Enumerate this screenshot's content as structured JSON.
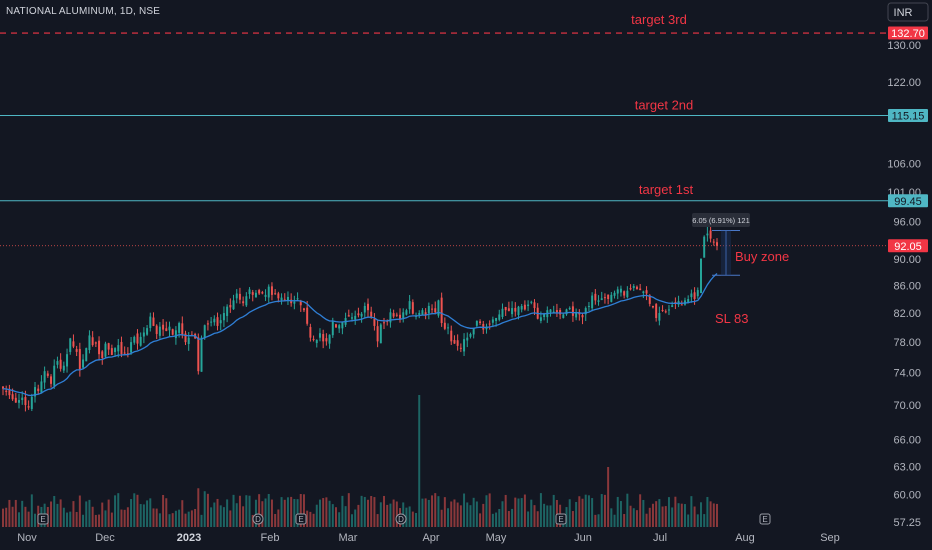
{
  "header": {
    "symbol_title": "NATIONAL ALUMINUM, 1D, NSE",
    "currency": "INR"
  },
  "colors": {
    "background": "#131722",
    "up": "#26a69a",
    "down": "#ef5350",
    "moving_average": "#2f7fd6",
    "target_line": "#4fb7c4",
    "target_3rd_line": "#f23645",
    "annotation_text": "#f23645"
  },
  "annotations": {
    "target_3rd": {
      "label": "target 3rd",
      "price": 132.7,
      "tag": "132.70"
    },
    "target_2nd": {
      "label": "target 2nd",
      "price": 115.15,
      "tag": "115.15"
    },
    "target_1st": {
      "label": "target 1st",
      "price": 99.45,
      "tag": "99.45"
    },
    "last_price": {
      "price": 92.05,
      "tag": "92.05"
    },
    "buy_zone": {
      "label": "Buy zone",
      "top": 94.5,
      "bottom": 87.5
    },
    "stop_loss": {
      "label": "SL 83"
    },
    "measure": {
      "label": "6.05 (6.91%) 121"
    }
  },
  "event_markers": [
    "E",
    "D",
    "E",
    "D",
    "E",
    "E"
  ],
  "chart_data": {
    "type": "candlestick",
    "title": "NATIONAL ALUMINUM, 1D, NSE",
    "price_axis": {
      "scale": "log",
      "range": [
        57.25,
        139
      ],
      "ticks": [
        57.25,
        60.0,
        63.0,
        66.0,
        70.0,
        74.0,
        78.0,
        82.0,
        86.0,
        90.0,
        96.0,
        101.0,
        106.0,
        122.0,
        130.0
      ]
    },
    "time_axis": {
      "ticks": [
        {
          "label": "Nov",
          "bold": false
        },
        {
          "label": "Dec",
          "bold": false
        },
        {
          "label": "2023",
          "bold": true
        },
        {
          "label": "Feb",
          "bold": false
        },
        {
          "label": "Mar",
          "bold": false
        },
        {
          "label": "Apr",
          "bold": false
        },
        {
          "label": "May",
          "bold": false
        },
        {
          "label": "Jun",
          "bold": false
        },
        {
          "label": "Jul",
          "bold": false
        },
        {
          "label": "Aug",
          "bold": false
        },
        {
          "label": "Sep",
          "bold": false
        }
      ]
    },
    "grid": false,
    "closes": [
      72.0,
      71.6,
      71.2,
      70.7,
      70.3,
      70.6,
      70.9,
      70.0,
      69.7,
      71.0,
      72.2,
      71.7,
      72.9,
      74.2,
      73.6,
      72.6,
      74.9,
      75.5,
      74.5,
      74.9,
      76.4,
      78.5,
      77.4,
      76.7,
      74.3,
      75.7,
      77.2,
      78.9,
      77.6,
      77.8,
      76.4,
      75.9,
      77.8,
      77.0,
      76.3,
      77.2,
      77.6,
      76.4,
      76.6,
      76.5,
      78.0,
      78.7,
      77.8,
      78.7,
      79.3,
      79.9,
      81.5,
      80.2,
      79.1,
      80.1,
      79.7,
      79.5,
      80.1,
      79.0,
      79.6,
      80.6,
      78.9,
      78.0,
      78.6,
      79.0,
      78.5,
      74.2,
      78.6,
      80.3,
      80.4,
      80.8,
      81.2,
      80.2,
      81.0,
      82.0,
      82.9,
      82.8,
      83.8,
      84.8,
      83.9,
      83.4,
      84.4,
      85.4,
      84.6,
      84.9,
      84.8,
      84.8,
      84.6,
      85.8,
      84.6,
      84.7,
      84.1,
      84.2,
      83.9,
      84.3,
      83.4,
      83.6,
      84.1,
      83.1,
      82.4,
      80.5,
      78.6,
      78.3,
      78.3,
      79.2,
      78.1,
      78.1,
      79.0,
      80.8,
      80.0,
      80.3,
      80.8,
      81.3,
      81.5,
      81.4,
      81.6,
      81.7,
      81.9,
      83.0,
      82.4,
      81.5,
      80.2,
      78.1,
      80.4,
      80.6,
      80.8,
      82.1,
      81.5,
      81.7,
      81.2,
      82.1,
      82.4,
      83.7,
      81.9,
      81.6,
      82.0,
      82.4,
      81.7,
      83.0,
      82.6,
      82.1,
      83.8,
      80.6,
      79.8,
      80.0,
      78.1,
      77.8,
      77.5,
      77.2,
      78.4,
      78.6,
      79.1,
      79.9,
      80.9,
      80.6,
      79.7,
      80.1,
      80.5,
      81.1,
      81.3,
      81.8,
      82.6,
      82.4,
      82.3,
      82.7,
      82.2,
      82.9,
      83.0,
      82.5,
      83.2,
      83.6,
      82.7,
      81.2,
      81.4,
      81.9,
      82.4,
      82.5,
      82.2,
      82.1,
      81.8,
      81.8,
      82.5,
      82.7,
      81.6,
      82.1,
      81.8,
      81.4,
      82.7,
      83.0,
      84.5,
      83.8,
      83.8,
      84.1,
      84.2,
      84.0,
      84.6,
      84.9,
      85.4,
      85.5,
      84.5,
      85.2,
      85.4,
      85.9,
      85.4,
      85.3,
      85.1,
      84.8,
      83.3,
      82.8,
      81.3,
      82.0,
      82.3,
      82.1,
      82.5,
      83.1,
      83.3,
      83.7,
      83.2,
      83.8,
      84.0,
      84.8,
      84.0,
      85.3,
      90.0,
      93.5,
      94.0,
      93.2,
      92.6,
      92.05
    ],
    "series": [
      {
        "name": "",
        "type": "candles"
      },
      {
        "name": "",
        "type": "moving_average"
      },
      {
        "name": "",
        "type": "volume"
      }
    ]
  }
}
